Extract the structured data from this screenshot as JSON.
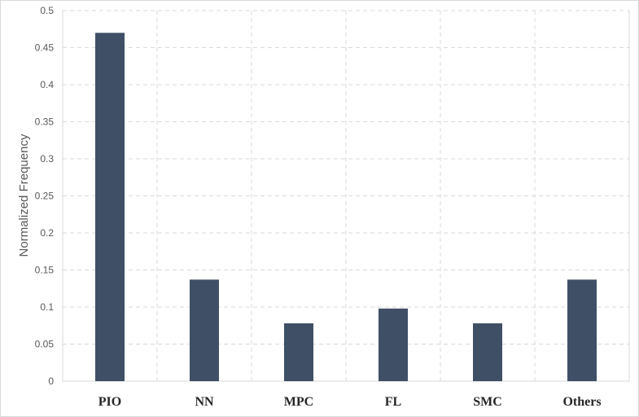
{
  "chart_data": {
    "type": "bar",
    "categories": [
      "PIO",
      "NN",
      "MPC",
      "FL",
      "SMC",
      "Others"
    ],
    "values": [
      0.47,
      0.137,
      0.078,
      0.098,
      0.078,
      0.137
    ],
    "title": "",
    "xlabel": "",
    "ylabel": "Normalized Frequency",
    "ylim": [
      0,
      0.5
    ],
    "yticks": [
      "0",
      "0.05",
      "0.1",
      "0.15",
      "0.2",
      "0.25",
      "0.3",
      "0.35",
      "0.4",
      "0.45",
      "0.5"
    ],
    "grid": true,
    "legend": "none",
    "bar_color": "#3f4f66",
    "grid_color": "#d9d9d9"
  }
}
